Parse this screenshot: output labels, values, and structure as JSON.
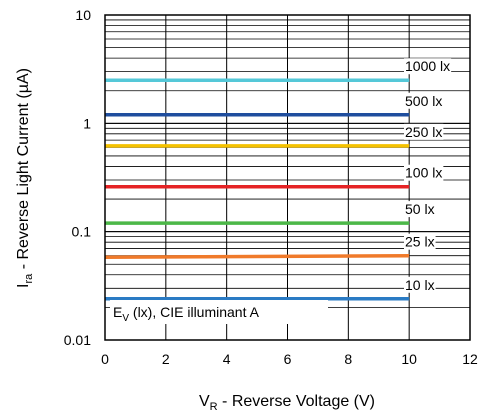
{
  "chart_data": {
    "type": "line",
    "xlabel": {
      "main": "V",
      "sub": "R",
      "rest": " - Reverse Voltage (V)"
    },
    "ylabel": {
      "main": "I",
      "sub": "ra",
      "rest": " - Reverse Light Current (µA)"
    },
    "xlim": [
      0,
      12
    ],
    "ylim": [
      0.01,
      10
    ],
    "yscale": "log",
    "grid": true,
    "x_ticks": [
      "0",
      "2",
      "4",
      "6",
      "8",
      "10",
      "12"
    ],
    "y_ticks": [
      "0.01",
      "0.1",
      "1",
      "10"
    ],
    "x": [
      0,
      10
    ],
    "series": [
      {
        "name": "1000 lx",
        "color": "#55c8d8",
        "values": [
          2.5,
          2.5
        ]
      },
      {
        "name": "500 lx",
        "color": "#1f4e9e",
        "values": [
          1.2,
          1.2
        ]
      },
      {
        "name": "250 lx",
        "color": "#f5c200",
        "values": [
          0.62,
          0.62
        ]
      },
      {
        "name": "100 lx",
        "color": "#e52325",
        "values": [
          0.26,
          0.26
        ]
      },
      {
        "name": "50 lx",
        "color": "#4cb848",
        "values": [
          0.12,
          0.12
        ]
      },
      {
        "name": "25 lx",
        "color": "#f07a2a",
        "values": [
          0.058,
          0.06
        ]
      },
      {
        "name": "10 lx",
        "color": "#2a7bc4",
        "values": [
          0.024,
          0.024
        ]
      }
    ],
    "annotation": {
      "main": "E",
      "sub": "V",
      "rest": " (lx), CIE illuminant A"
    }
  }
}
